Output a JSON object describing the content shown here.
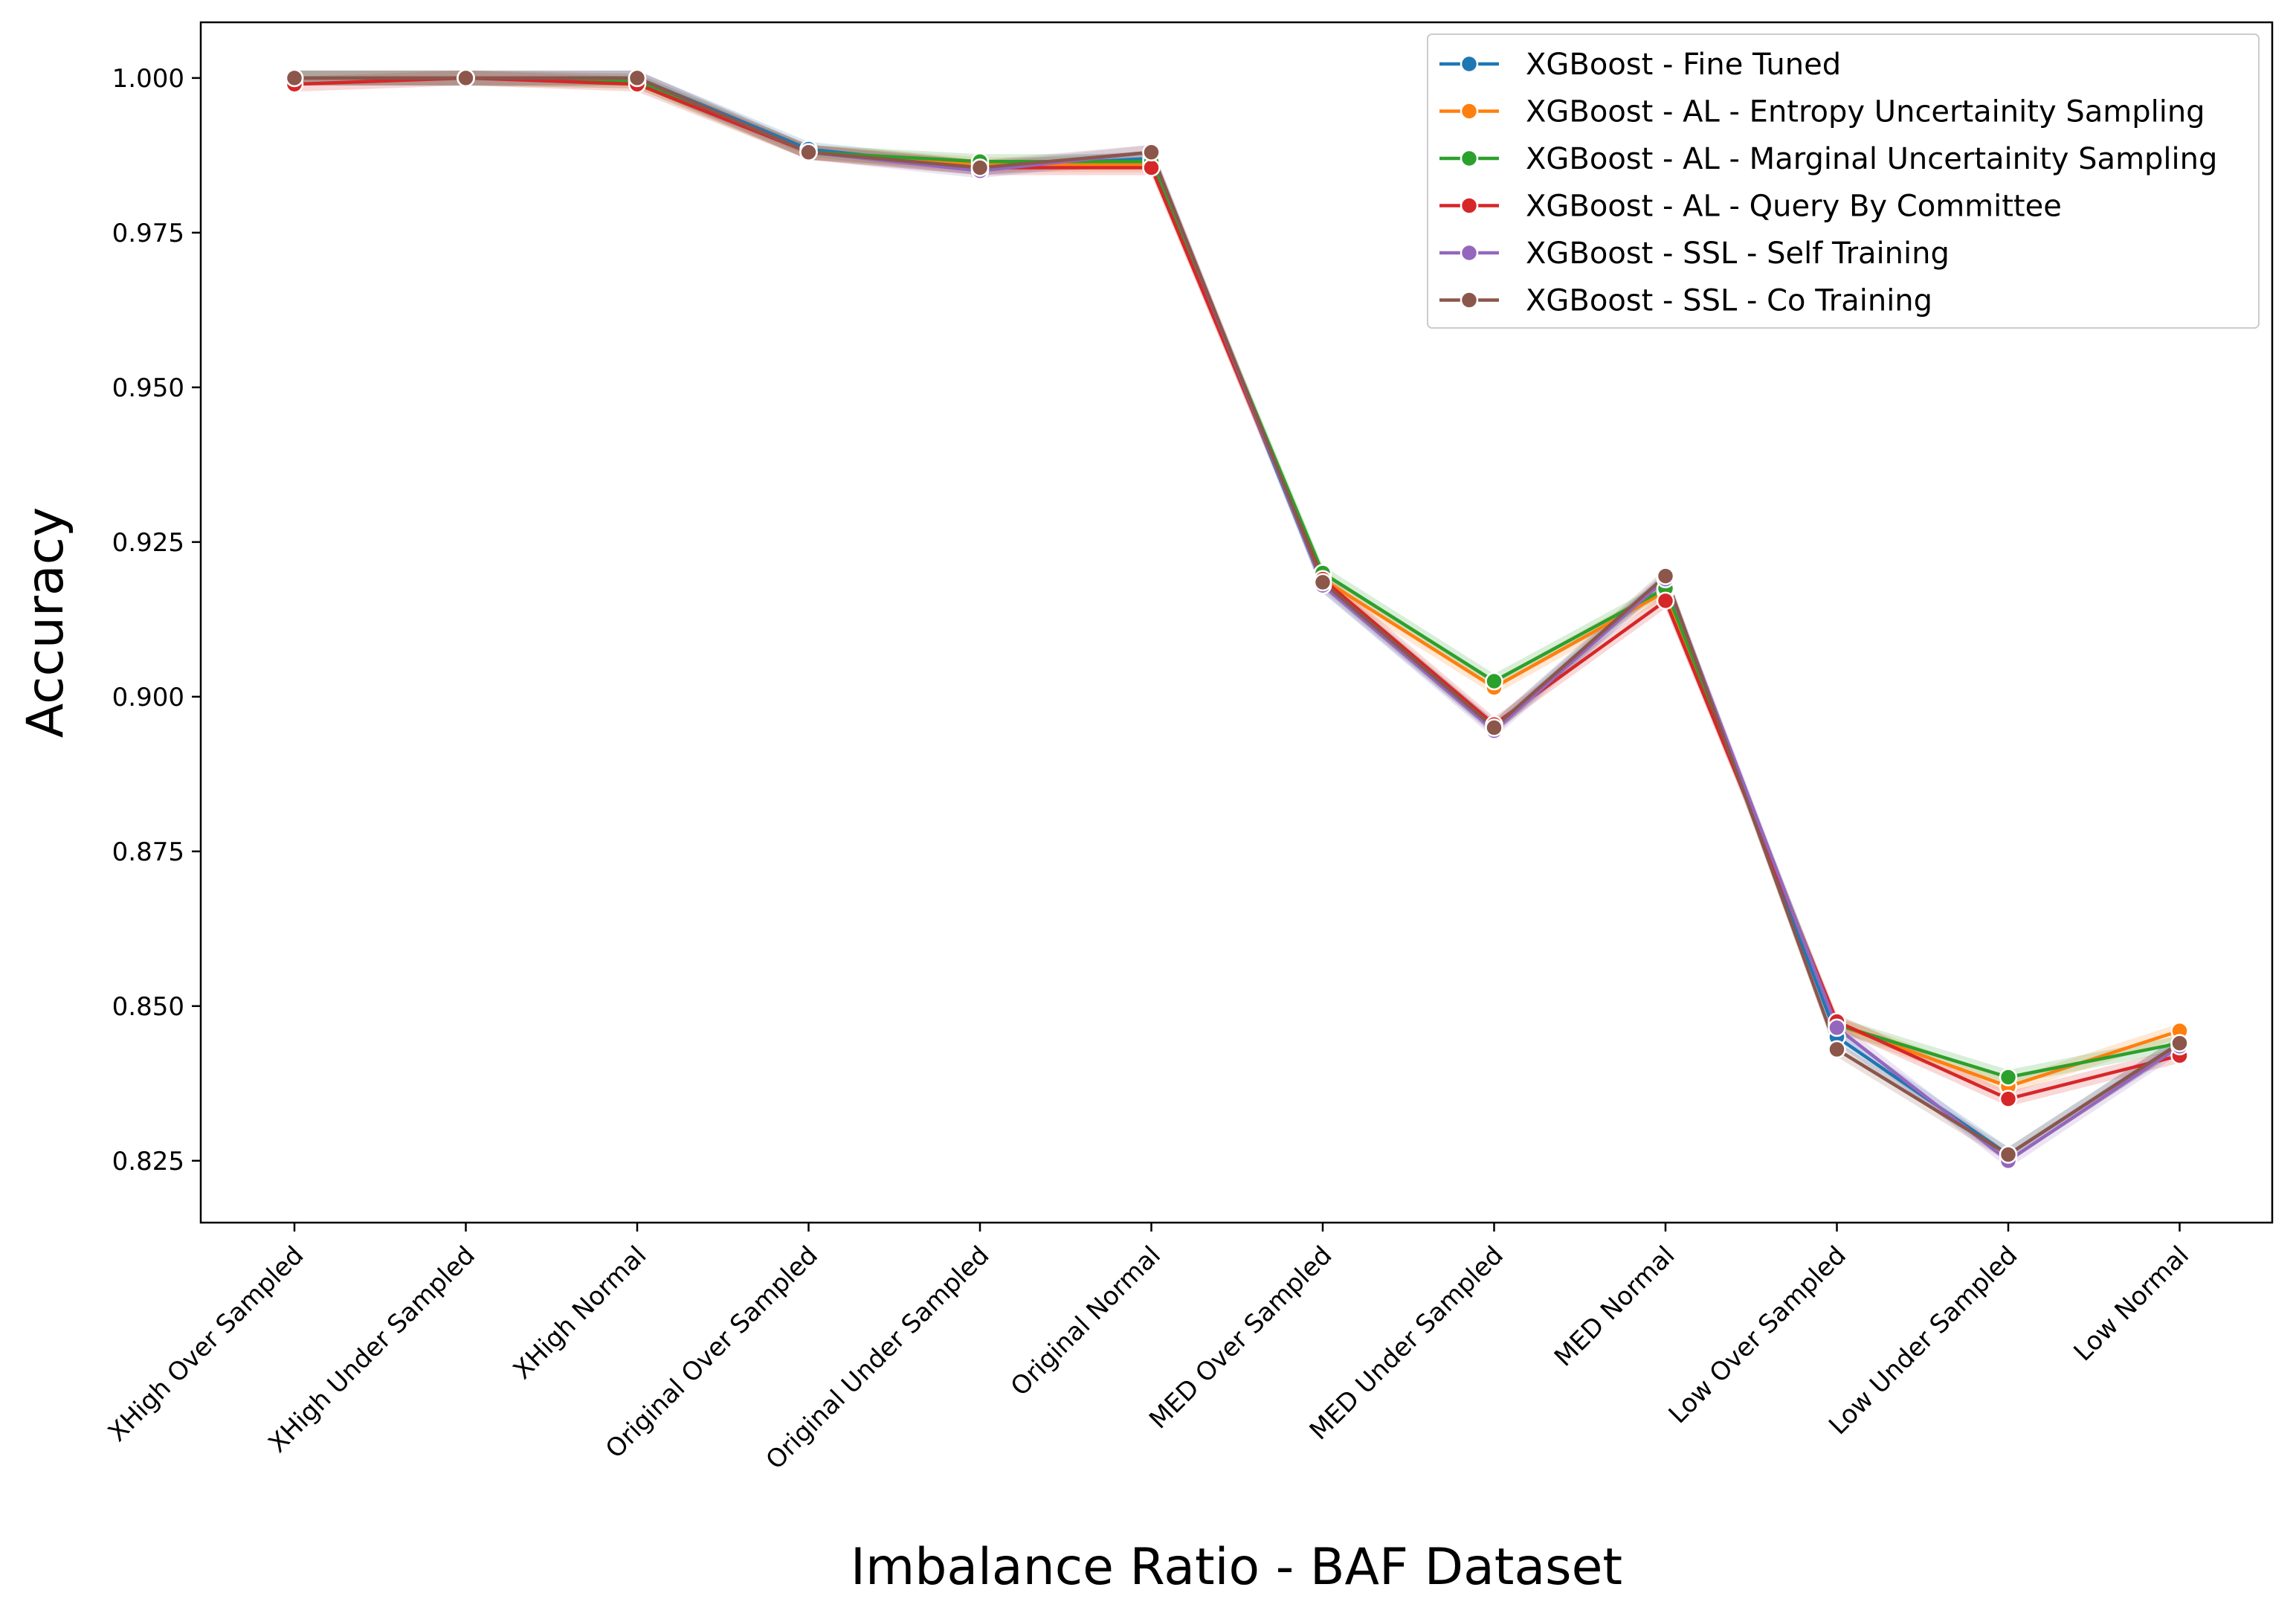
{
  "chart_data": {
    "type": "line",
    "title": "",
    "xlabel": "Imbalance Ratio - BAF Dataset",
    "ylabel": "Accuracy",
    "ylim": [
      0.815,
      1.009
    ],
    "yticks": [
      0.825,
      0.85,
      0.875,
      0.9,
      0.925,
      0.95,
      0.975,
      1.0
    ],
    "ytick_labels": [
      "0.825",
      "0.850",
      "0.875",
      "0.900",
      "0.925",
      "0.950",
      "0.975",
      "1.000"
    ],
    "grid": false,
    "legend_position": "top-right",
    "categories": [
      "XHigh Over Sampled",
      "XHigh Under Sampled",
      "XHigh Normal",
      "Original Over Sampled",
      "Original Under Sampled",
      "Original Normal",
      "MED Over Sampled",
      "MED Under Sampled",
      "MED Normal",
      "Low Over Sampled",
      "Low Under Sampled",
      "Low Normal"
    ],
    "series": [
      {
        "name": "XGBoost - Fine Tuned",
        "color": "#1f77b4",
        "values": [
          1.0,
          1.0,
          1.0,
          0.9885,
          0.9855,
          0.987,
          0.918,
          0.895,
          0.919,
          0.845,
          0.826,
          0.844
        ]
      },
      {
        "name": "XGBoost - AL - Entropy Uncertainity Sampling",
        "color": "#ff7f0e",
        "values": [
          1.0,
          1.0,
          0.9995,
          0.988,
          0.986,
          0.986,
          0.919,
          0.9015,
          0.917,
          0.847,
          0.837,
          0.846
        ]
      },
      {
        "name": "XGBoost - AL - Marginal Uncertainity Sampling",
        "color": "#2ca02c",
        "values": [
          1.0,
          1.0,
          0.9995,
          0.988,
          0.9865,
          0.9865,
          0.92,
          0.9025,
          0.9175,
          0.847,
          0.8385,
          0.844
        ]
      },
      {
        "name": "XGBoost - AL - Query By Committee",
        "color": "#d62728",
        "values": [
          0.999,
          1.0,
          0.999,
          0.988,
          0.9855,
          0.9855,
          0.919,
          0.8955,
          0.9155,
          0.8475,
          0.835,
          0.842
        ]
      },
      {
        "name": "XGBoost - SSL - Self Training",
        "color": "#9467bd",
        "values": [
          1.0,
          1.0,
          1.0,
          0.988,
          0.985,
          0.988,
          0.918,
          0.8945,
          0.919,
          0.8465,
          0.825,
          0.8435
        ]
      },
      {
        "name": "XGBoost - SSL - Co Training",
        "color": "#8c564b",
        "values": [
          1.0,
          1.0,
          1.0,
          0.988,
          0.9855,
          0.988,
          0.9185,
          0.895,
          0.9195,
          0.843,
          0.826,
          0.844
        ]
      }
    ]
  }
}
